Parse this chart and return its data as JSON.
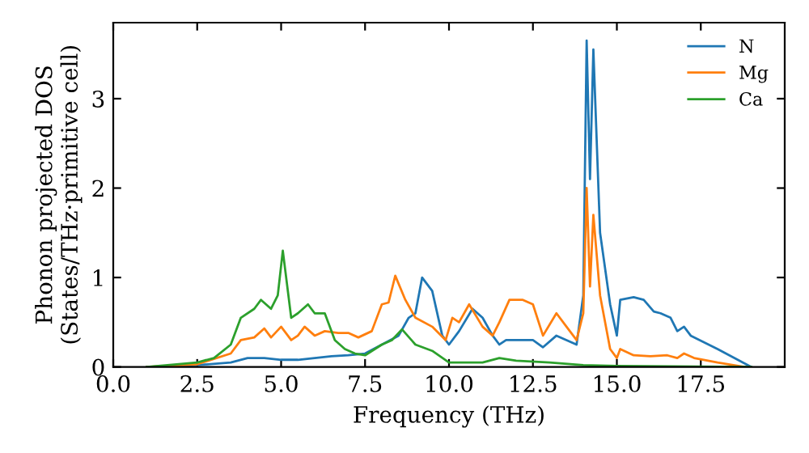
{
  "chart_data": {
    "type": "line",
    "xlabel": "Frequency (THz)",
    "ylabel": "Phonon projected DOS\n(States/THz·primitive cell)",
    "xlim": [
      0,
      20
    ],
    "ylim": [
      0,
      3.85
    ],
    "xticks": [
      {
        "value": 0,
        "label": "0.0"
      },
      2.5,
      {
        "value": 5,
        "label": "5.0"
      },
      7.5,
      {
        "value": 10,
        "label": "10.0"
      },
      12.5,
      {
        "value": 15,
        "label": "15.0"
      },
      17.5
    ],
    "yticks": [
      0,
      1,
      2,
      3
    ],
    "legend": "top right",
    "grid": false,
    "marker": "none",
    "line_style": "solid",
    "series": [
      {
        "name": "N",
        "color": "#1f77b4",
        "x": [
          1,
          2.5,
          3.5,
          4,
          4.5,
          5,
          5.5,
          6,
          6.5,
          7,
          7.5,
          8,
          8.5,
          8.8,
          9.0,
          9.2,
          9.5,
          9.8,
          10,
          10.3,
          10.7,
          11,
          11.3,
          11.5,
          11.7,
          12,
          12.5,
          12.8,
          13.2,
          13.5,
          13.8,
          14.0,
          14.1,
          14.2,
          14.3,
          14.5,
          14.8,
          15.0,
          15.1,
          15.5,
          15.8,
          16.1,
          16.3,
          16.6,
          16.8,
          17.0,
          17.2,
          18,
          19
        ],
        "values": [
          0,
          0.02,
          0.05,
          0.1,
          0.1,
          0.08,
          0.08,
          0.1,
          0.12,
          0.13,
          0.15,
          0.25,
          0.35,
          0.55,
          0.6,
          1.0,
          0.85,
          0.35,
          0.25,
          0.4,
          0.65,
          0.55,
          0.35,
          0.25,
          0.3,
          0.3,
          0.3,
          0.22,
          0.35,
          0.3,
          0.25,
          0.8,
          3.65,
          2.1,
          3.55,
          1.5,
          0.7,
          0.35,
          0.75,
          0.78,
          0.75,
          0.62,
          0.6,
          0.55,
          0.4,
          0.45,
          0.35,
          0.2,
          0
        ]
      },
      {
        "name": "Mg",
        "color": "#ff7f0e",
        "x": [
          1,
          2.5,
          3.5,
          3.8,
          4.2,
          4.5,
          4.7,
          5.0,
          5.3,
          5.5,
          5.7,
          6,
          6.3,
          6.7,
          7.0,
          7.3,
          7.7,
          8.0,
          8.2,
          8.4,
          8.7,
          9.0,
          9.5,
          9.9,
          10.1,
          10.3,
          10.6,
          11,
          11.3,
          11.5,
          11.8,
          12.2,
          12.5,
          12.8,
          13.2,
          13.5,
          13.8,
          14.0,
          14.1,
          14.2,
          14.3,
          14.5,
          14.8,
          15.0,
          15.1,
          15.5,
          16,
          16.5,
          16.8,
          17.0,
          17.3,
          18,
          18.8
        ],
        "values": [
          0,
          0.03,
          0.15,
          0.3,
          0.33,
          0.43,
          0.33,
          0.45,
          0.3,
          0.35,
          0.45,
          0.35,
          0.4,
          0.38,
          0.38,
          0.33,
          0.4,
          0.7,
          0.72,
          1.02,
          0.75,
          0.55,
          0.45,
          0.3,
          0.55,
          0.5,
          0.7,
          0.45,
          0.35,
          0.5,
          0.75,
          0.75,
          0.7,
          0.35,
          0.6,
          0.45,
          0.3,
          0.6,
          2.0,
          0.9,
          1.7,
          0.8,
          0.2,
          0.1,
          0.2,
          0.13,
          0.12,
          0.13,
          0.1,
          0.15,
          0.1,
          0.05,
          0
        ]
      },
      {
        "name": "Ca",
        "color": "#2ca02c",
        "x": [
          1,
          2.5,
          3.0,
          3.5,
          3.8,
          4.2,
          4.4,
          4.7,
          4.9,
          5.05,
          5.3,
          5.5,
          5.8,
          6.0,
          6.3,
          6.6,
          6.9,
          7.2,
          7.5,
          8,
          8.3,
          8.6,
          9,
          9.5,
          10.0,
          11,
          11.5,
          12,
          13,
          14,
          15,
          19
        ],
        "values": [
          0,
          0.05,
          0.1,
          0.25,
          0.55,
          0.65,
          0.75,
          0.65,
          0.8,
          1.3,
          0.55,
          0.6,
          0.7,
          0.6,
          0.6,
          0.3,
          0.2,
          0.15,
          0.13,
          0.25,
          0.3,
          0.42,
          0.25,
          0.18,
          0.05,
          0.05,
          0.1,
          0.07,
          0.05,
          0.02,
          0.01,
          0
        ]
      }
    ]
  }
}
